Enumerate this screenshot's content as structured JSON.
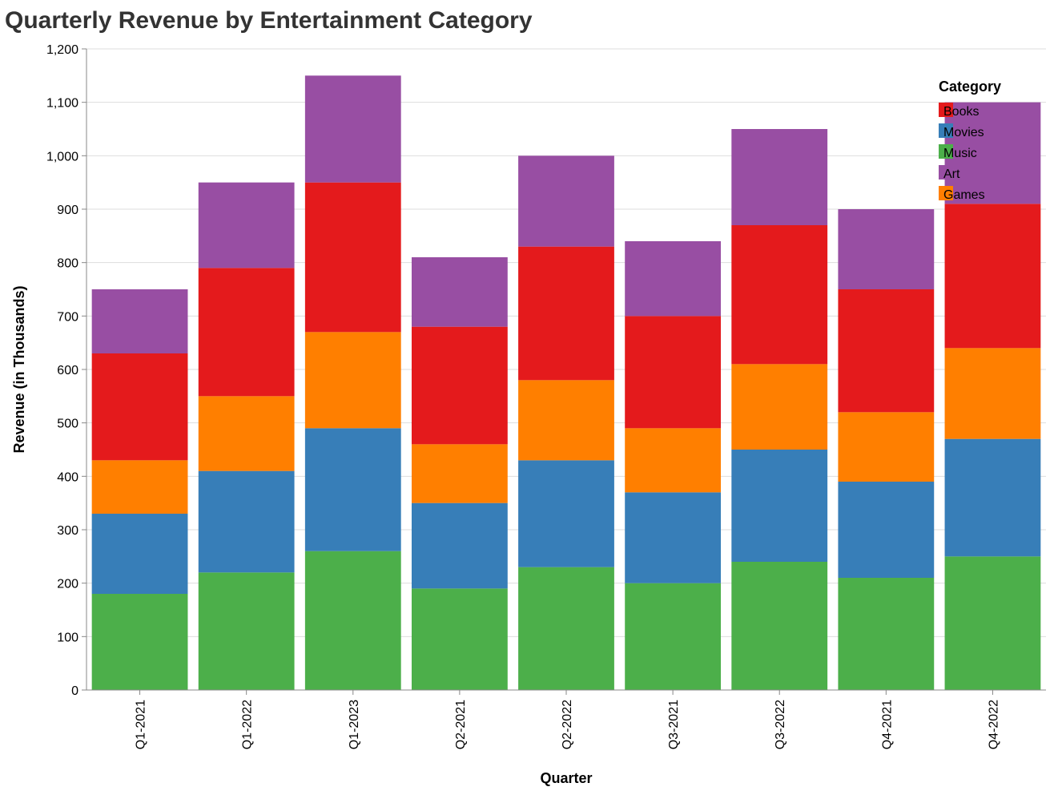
{
  "chart_data": {
    "type": "bar",
    "stacked": true,
    "title": "Quarterly Revenue by Entertainment Category",
    "xlabel": "Quarter",
    "ylabel": "Revenue (in Thousands)",
    "ylim": [
      0,
      1200
    ],
    "yticks": [
      0,
      100,
      200,
      300,
      400,
      500,
      600,
      700,
      800,
      900,
      1000,
      1100,
      1200
    ],
    "ytick_labels": [
      "0",
      "100",
      "200",
      "300",
      "400",
      "500",
      "600",
      "700",
      "800",
      "900",
      "1,000",
      "1,100",
      "1,200"
    ],
    "grid": true,
    "legend_title": "Category",
    "legend_placement": "top-right",
    "categories": [
      "Q1-2021",
      "Q1-2022",
      "Q1-2023",
      "Q2-2021",
      "Q2-2022",
      "Q3-2021",
      "Q3-2022",
      "Q4-2021",
      "Q4-2022"
    ],
    "stack_order": [
      "Music",
      "Movies",
      "Games",
      "Books",
      "Art"
    ],
    "legend_order": [
      "Books",
      "Movies",
      "Music",
      "Art",
      "Games"
    ],
    "series": [
      {
        "name": "Music",
        "color": "#4caf4a",
        "values": [
          180,
          220,
          260,
          190,
          230,
          200,
          240,
          210,
          250
        ]
      },
      {
        "name": "Movies",
        "color": "#377eb8",
        "values": [
          150,
          190,
          230,
          160,
          200,
          170,
          210,
          180,
          220
        ]
      },
      {
        "name": "Games",
        "color": "#ff7f00",
        "values": [
          100,
          140,
          180,
          110,
          150,
          120,
          160,
          130,
          170
        ]
      },
      {
        "name": "Books",
        "color": "#e41a1c",
        "values": [
          200,
          240,
          280,
          220,
          250,
          210,
          260,
          230,
          270
        ]
      },
      {
        "name": "Art",
        "color": "#984ea3",
        "values": [
          120,
          160,
          200,
          130,
          170,
          140,
          180,
          150,
          190
        ]
      }
    ]
  }
}
